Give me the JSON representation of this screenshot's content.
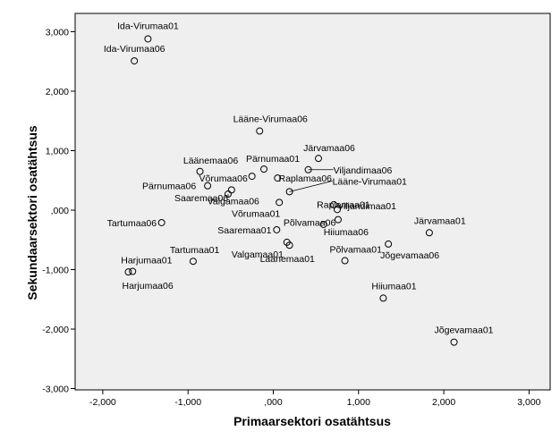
{
  "chart_data": {
    "type": "scatter",
    "xlabel": "Primaarsektori osatähtsus",
    "ylabel": "Sekundaarsektori osatähtsus",
    "xlim": [
      -2.3,
      3.2
    ],
    "ylim": [
      -3.0,
      3.2
    ],
    "xticks": [
      -2,
      -1,
      0,
      1,
      2,
      3
    ],
    "xtick_labels": [
      "-2,000",
      "-1,000",
      ",000",
      "1,000",
      "2,000",
      "3,000"
    ],
    "yticks": [
      -3,
      -2,
      -1,
      0,
      1,
      2,
      3
    ],
    "ytick_labels": [
      "-3,000",
      "-2,000",
      "-1,000",
      ",000",
      "1,000",
      "2,000",
      "3,000"
    ],
    "grid": false,
    "colors": {
      "plot_background": "#efefef",
      "marker": "#000000"
    },
    "points": [
      {
        "label": "Ida-Virumaa01",
        "x": -1.47,
        "y": 2.88
      },
      {
        "label": "Ida-Virumaa06",
        "x": -1.63,
        "y": 2.51
      },
      {
        "label": "Lääne-Virumaa06",
        "x": -0.16,
        "y": 1.33
      },
      {
        "label": "Järvamaa06",
        "x": 0.53,
        "y": 0.87
      },
      {
        "label": "Pärnumaa01",
        "x": -0.11,
        "y": 0.69
      },
      {
        "label": "Viljandimaa06",
        "x": 0.41,
        "y": 0.68
      },
      {
        "label": "Läänemaa06",
        "x": -0.86,
        "y": 0.65
      },
      {
        "label": "Võrumaa06",
        "x": -0.25,
        "y": 0.57
      },
      {
        "label": "Raplamaa06",
        "x": 0.05,
        "y": 0.54
      },
      {
        "label": "Pärnumaa06",
        "x": -0.77,
        "y": 0.41
      },
      {
        "label": "Valgamaa06",
        "x": -0.49,
        "y": 0.34
      },
      {
        "label": "Lääne-Virumaa01",
        "x": 0.19,
        "y": 0.31
      },
      {
        "label": "Saaremaa06",
        "x": -0.53,
        "y": 0.27
      },
      {
        "label": "Raplamaa01",
        "x": 0.07,
        "y": 0.13
      },
      {
        "label": "Viljandimaa01",
        "x": 0.71,
        "y": 0.09
      },
      {
        "label": "Võrumaa01",
        "x": 0.75,
        "y": 0.01
      },
      {
        "label": "Põlvamaa06",
        "x": 0.76,
        "y": -0.16
      },
      {
        "label": "Tartumaa06",
        "x": -1.31,
        "y": -0.21
      },
      {
        "label": "Hiiumaa06",
        "x": 0.59,
        "y": -0.24
      },
      {
        "label": "Saaremaa01",
        "x": 0.04,
        "y": -0.33
      },
      {
        "label": "Järvamaa01",
        "x": 1.83,
        "y": -0.38
      },
      {
        "label": "Valgamaa01",
        "x": 0.16,
        "y": -0.54
      },
      {
        "label": "Läänemaa01",
        "x": 0.19,
        "y": -0.59
      },
      {
        "label": "Jõgevamaa06",
        "x": 1.35,
        "y": -0.57
      },
      {
        "label": "Põlvamaa01",
        "x": 0.84,
        "y": -0.85
      },
      {
        "label": "Tartumaa01",
        "x": -0.94,
        "y": -0.86
      },
      {
        "label": "Harjumaa01",
        "x": -1.65,
        "y": -1.03
      },
      {
        "label": "Harjumaa06",
        "x": -1.7,
        "y": -1.04
      },
      {
        "label": "Hiiumaa01",
        "x": 1.29,
        "y": -1.48
      },
      {
        "label": "Jõgevamaa01",
        "x": 2.12,
        "y": -2.22
      }
    ]
  }
}
